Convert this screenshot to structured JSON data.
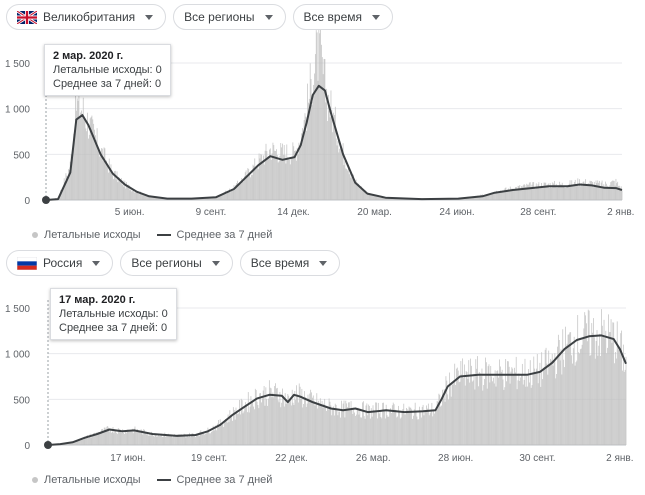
{
  "panels": [
    {
      "id": "uk",
      "controls": {
        "country": "Великобритания",
        "region": "Все регионы",
        "period": "Все время"
      },
      "tooltip": {
        "date": "2 мар. 2020 г.",
        "deaths_label": "Летальные исходы: 0",
        "avg_label": "Среднее за 7 дней: 0"
      },
      "legend": {
        "bars": "Летальные исходы",
        "line": "Среднее за 7 дней"
      },
      "colors": {
        "bars": "#bdbdbd",
        "line": "#3c4043",
        "grid": "#e8eaed"
      }
    },
    {
      "id": "ru",
      "controls": {
        "country": "Россия",
        "region": "Все регионы",
        "period": "Все время"
      },
      "tooltip": {
        "date": "17 мар. 2020 г.",
        "deaths_label": "Летальные исходы: 0",
        "avg_label": "Среднее за 7 дней: 0"
      },
      "legend": {
        "bars": "Летальные исходы",
        "line": "Среднее за 7 дней"
      },
      "colors": {
        "bars": "#bdbdbd",
        "line": "#3c4043",
        "grid": "#e8eaed"
      }
    }
  ],
  "chart_data": [
    {
      "type": "area",
      "x_unit": "weeks since 2 мар. 2020 г.",
      "ylim": [
        0,
        1500
      ],
      "yticks": [
        0,
        500,
        1000,
        1500
      ],
      "ytick_labels": [
        "0",
        "500",
        "1 000",
        "1 500"
      ],
      "xticks": [
        {
          "week": 13.8,
          "label": "5 июн."
        },
        {
          "week": 27.2,
          "label": "9 сент."
        },
        {
          "week": 40.8,
          "label": "14 дек."
        },
        {
          "week": 54.2,
          "label": "20 мар."
        },
        {
          "week": 67.8,
          "label": "24 июн."
        },
        {
          "week": 81.2,
          "label": "28 сент."
        },
        {
          "week": 94.8,
          "label": "2 янв."
        }
      ],
      "series": [
        {
          "name": "Среднее за 7 дней",
          "points": [
            [
              0,
              0
            ],
            [
              2,
              10
            ],
            [
              4,
              300
            ],
            [
              5,
              880
            ],
            [
              6,
              930
            ],
            [
              7,
              820
            ],
            [
              9,
              500
            ],
            [
              11,
              290
            ],
            [
              13,
              170
            ],
            [
              15,
              90
            ],
            [
              17,
              40
            ],
            [
              20,
              15
            ],
            [
              24,
              15
            ],
            [
              28,
              30
            ],
            [
              31,
              120
            ],
            [
              33,
              250
            ],
            [
              35,
              380
            ],
            [
              37,
              480
            ],
            [
              39,
              440
            ],
            [
              41,
              470
            ],
            [
              42,
              600
            ],
            [
              43,
              850
            ],
            [
              44,
              1150
            ],
            [
              45,
              1250
            ],
            [
              46,
              1200
            ],
            [
              47,
              950
            ],
            [
              49,
              500
            ],
            [
              51,
              190
            ],
            [
              53,
              70
            ],
            [
              56,
              25
            ],
            [
              62,
              10
            ],
            [
              68,
              15
            ],
            [
              72,
              40
            ],
            [
              74,
              80
            ],
            [
              77,
              110
            ],
            [
              80,
              130
            ],
            [
              83,
              150
            ],
            [
              86,
              150
            ],
            [
              88,
              170
            ],
            [
              90,
              160
            ],
            [
              92,
              135
            ],
            [
              94,
              130
            ],
            [
              95,
              110
            ]
          ]
        },
        {
          "name": "Летальные исходы",
          "points": [
            [
              0,
              0
            ],
            [
              2,
              20
            ],
            [
              4,
              380
            ],
            [
              5,
              1050
            ],
            [
              6,
              1000
            ],
            [
              7,
              850
            ],
            [
              9,
              550
            ],
            [
              11,
              300
            ],
            [
              13,
              170
            ],
            [
              15,
              90
            ],
            [
              17,
              40
            ],
            [
              20,
              15
            ],
            [
              24,
              15
            ],
            [
              28,
              30
            ],
            [
              31,
              130
            ],
            [
              33,
              270
            ],
            [
              35,
              420
            ],
            [
              37,
              560
            ],
            [
              39,
              520
            ],
            [
              41,
              520
            ],
            [
              42,
              700
            ],
            [
              43,
              980
            ],
            [
              44,
              1400
            ],
            [
              45,
              1650
            ],
            [
              46,
              1250
            ],
            [
              47,
              1000
            ],
            [
              49,
              520
            ],
            [
              51,
              200
            ],
            [
              53,
              70
            ],
            [
              56,
              25
            ],
            [
              62,
              10
            ],
            [
              68,
              15
            ],
            [
              72,
              50
            ],
            [
              74,
              90
            ],
            [
              77,
              130
            ],
            [
              80,
              160
            ],
            [
              83,
              170
            ],
            [
              86,
              170
            ],
            [
              88,
              200
            ],
            [
              90,
              185
            ],
            [
              92,
              170
            ],
            [
              94,
              200
            ],
            [
              95,
              120
            ]
          ]
        }
      ]
    },
    {
      "type": "area",
      "x_unit": "weeks since 17 мар. 2020 г.",
      "ylim": [
        0,
        1500
      ],
      "yticks": [
        0,
        500,
        1000,
        1500
      ],
      "ytick_labels": [
        "0",
        "500",
        "1 000",
        "1 500"
      ],
      "xticks": [
        {
          "week": 13.0,
          "label": "17 июн."
        },
        {
          "week": 26.2,
          "label": "19 сент."
        },
        {
          "week": 39.6,
          "label": "22 дек."
        },
        {
          "week": 52.9,
          "label": "26 мар."
        },
        {
          "week": 66.3,
          "label": "28 июн."
        },
        {
          "week": 79.6,
          "label": "30 сент."
        },
        {
          "week": 93.0,
          "label": "2 янв."
        }
      ],
      "series": [
        {
          "name": "Среднее за 7 дней",
          "points": [
            [
              0,
              0
            ],
            [
              2,
              10
            ],
            [
              4,
              30
            ],
            [
              6,
              80
            ],
            [
              8,
              120
            ],
            [
              10,
              170
            ],
            [
              12,
              150
            ],
            [
              14,
              160
            ],
            [
              17,
              120
            ],
            [
              21,
              100
            ],
            [
              24,
              110
            ],
            [
              26,
              150
            ],
            [
              28,
              220
            ],
            [
              30,
              330
            ],
            [
              32,
              420
            ],
            [
              34,
              510
            ],
            [
              36,
              550
            ],
            [
              38,
              540
            ],
            [
              39,
              470
            ],
            [
              40,
              550
            ],
            [
              41,
              530
            ],
            [
              43,
              470
            ],
            [
              46,
              400
            ],
            [
              48,
              380
            ],
            [
              50,
              400
            ],
            [
              52,
              360
            ],
            [
              55,
              380
            ],
            [
              58,
              360
            ],
            [
              61,
              370
            ],
            [
              63,
              380
            ],
            [
              64,
              500
            ],
            [
              65,
              640
            ],
            [
              67,
              750
            ],
            [
              70,
              770
            ],
            [
              73,
              770
            ],
            [
              75,
              770
            ],
            [
              78,
              770
            ],
            [
              80,
              800
            ],
            [
              82,
              900
            ],
            [
              84,
              1050
            ],
            [
              86,
              1150
            ],
            [
              88,
              1190
            ],
            [
              90,
              1200
            ],
            [
              92,
              1160
            ],
            [
              93,
              1050
            ],
            [
              94,
              890
            ]
          ]
        },
        {
          "name": "Летальные исходы",
          "points": [
            [
              0,
              0
            ],
            [
              2,
              10
            ],
            [
              4,
              30
            ],
            [
              6,
              80
            ],
            [
              8,
              130
            ],
            [
              10,
              175
            ],
            [
              12,
              155
            ],
            [
              14,
              165
            ],
            [
              17,
              120
            ],
            [
              21,
              100
            ],
            [
              24,
              115
            ],
            [
              26,
              155
            ],
            [
              28,
              230
            ],
            [
              30,
              340
            ],
            [
              32,
              440
            ],
            [
              34,
              530
            ],
            [
              36,
              570
            ],
            [
              38,
              550
            ],
            [
              39,
              480
            ],
            [
              40,
              560
            ],
            [
              41,
              540
            ],
            [
              43,
              480
            ],
            [
              46,
              410
            ],
            [
              48,
              390
            ],
            [
              50,
              410
            ],
            [
              52,
              370
            ],
            [
              55,
              385
            ],
            [
              58,
              365
            ],
            [
              61,
              375
            ],
            [
              63,
              385
            ],
            [
              64,
              510
            ],
            [
              65,
              650
            ],
            [
              67,
              760
            ],
            [
              70,
              780
            ],
            [
              73,
              780
            ],
            [
              75,
              780
            ],
            [
              78,
              780
            ],
            [
              80,
              810
            ],
            [
              82,
              910
            ],
            [
              84,
              1060
            ],
            [
              86,
              1160
            ],
            [
              88,
              1200
            ],
            [
              90,
              1210
            ],
            [
              92,
              1170
            ],
            [
              93,
              1060
            ],
            [
              94,
              900
            ]
          ]
        }
      ]
    }
  ]
}
